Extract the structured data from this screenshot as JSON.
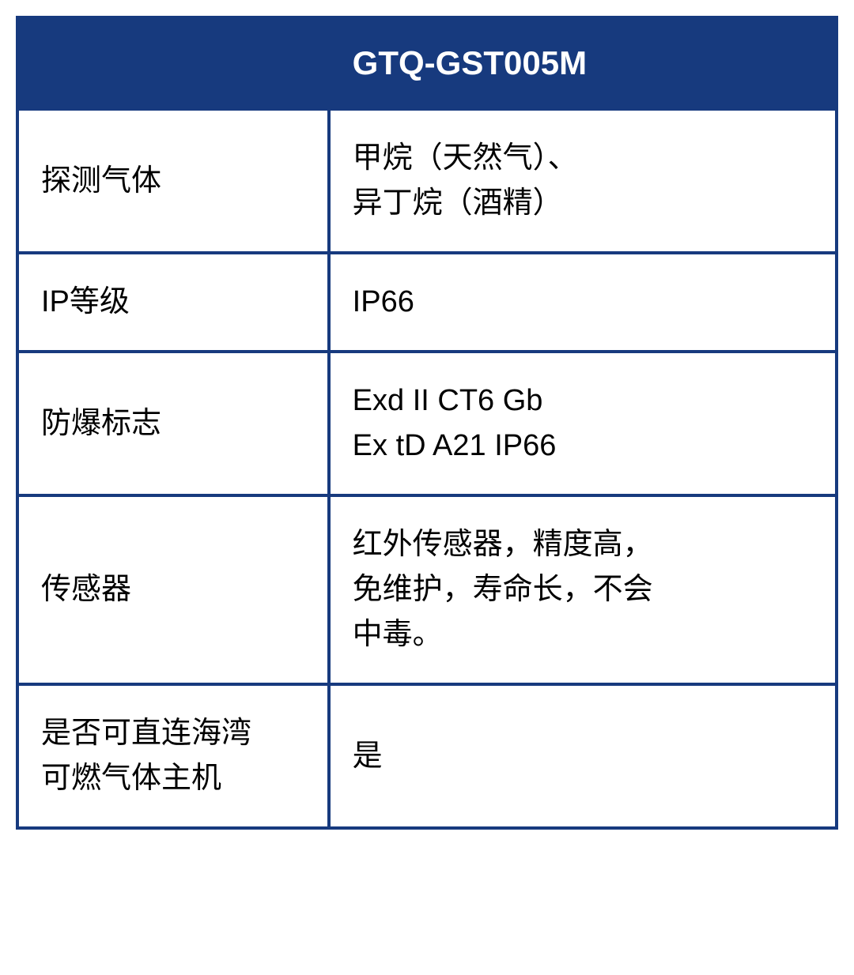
{
  "table": {
    "type": "table",
    "border_color": "#173a7e",
    "border_width": 4,
    "header_bg": "#173a7e",
    "header_fg": "#ffffff",
    "cell_bg": "#ffffff",
    "cell_fg": "#000000",
    "header_fontsize": 42,
    "cell_fontsize": 38,
    "header_fontweight": 700,
    "columns": [
      {
        "key": "label",
        "header": "",
        "width_pct": 38
      },
      {
        "key": "value",
        "header": "GTQ-GST005M",
        "width_pct": 62
      }
    ],
    "rows": [
      {
        "label": "探测气体",
        "value": "甲烷（天然气）、\n异丁烷（酒精）"
      },
      {
        "label": "IP等级",
        "value": "IP66"
      },
      {
        "label": "防爆标志",
        "value": "Exd II CT6 Gb\nEx tD A21 IP66"
      },
      {
        "label": "传感器",
        "value": "红外传感器，精度高，\n免维护，寿命长，不会\n中毒。"
      },
      {
        "label": "是否可直连海湾\n可燃气体主机",
        "value": "是"
      }
    ]
  }
}
